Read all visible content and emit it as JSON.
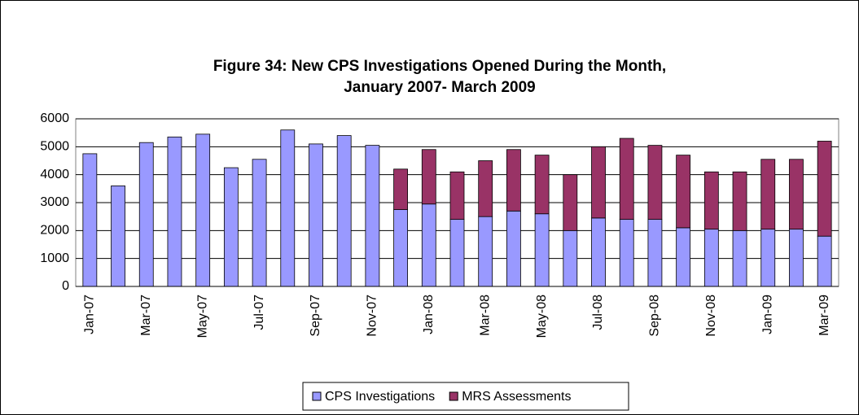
{
  "chart_data": {
    "type": "stacked_bar",
    "title": [
      "Figure 34: New CPS Investigations Opened During the Month,",
      "January 2007- March 2009"
    ],
    "categories": [
      "Jan-07",
      null,
      "Mar-07",
      null,
      "May-07",
      null,
      "Jul-07",
      null,
      "Sep-07",
      null,
      "Nov-07",
      null,
      "Jan-08",
      null,
      "Mar-08",
      null,
      "May-08",
      null,
      "Jul-08",
      null,
      "Sep-08",
      null,
      "Nov-08",
      null,
      "Jan-09",
      null,
      "Mar-09"
    ],
    "series": [
      {
        "name": "CPS Investigations",
        "color": "#9999ff",
        "values": [
          4750,
          3600,
          5150,
          5350,
          5450,
          4250,
          4550,
          5600,
          5100,
          5400,
          5050,
          2750,
          2950,
          2400,
          2500,
          2700,
          2600,
          2000,
          2450,
          2400,
          2400,
          2100,
          2050,
          2000,
          2050,
          2050,
          1800
        ]
      },
      {
        "name": "MRS Assessments",
        "color": "#993366",
        "values": [
          null,
          null,
          null,
          null,
          null,
          null,
          null,
          null,
          null,
          null,
          null,
          1450,
          1950,
          1700,
          2000,
          2200,
          2100,
          2000,
          2550,
          2900,
          2650,
          2600,
          2050,
          2100,
          2500,
          2500,
          3400
        ]
      }
    ],
    "ylim": [
      0,
      6000
    ],
    "yticks": [
      0,
      1000,
      2000,
      3000,
      4000,
      5000,
      6000
    ],
    "grid": true,
    "legend": "bottom"
  }
}
